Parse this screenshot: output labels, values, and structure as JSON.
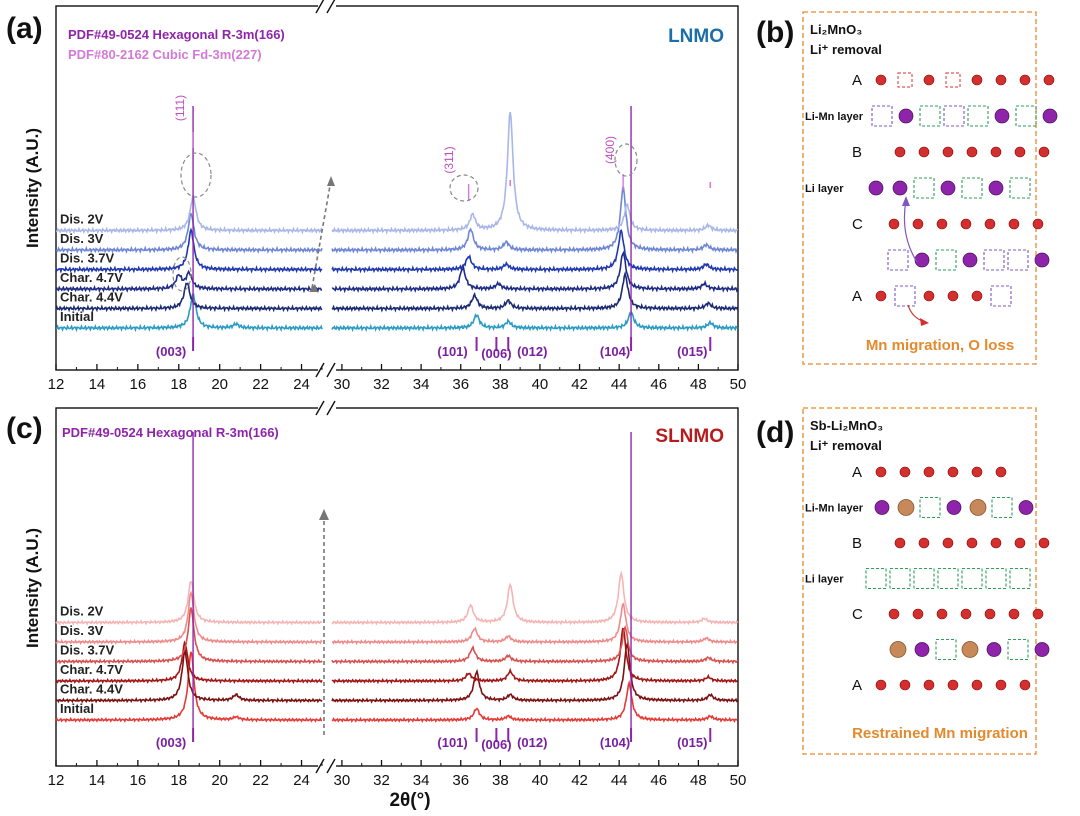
{
  "panel_labels": {
    "a": "(a)",
    "b": "(b)",
    "c": "(c)",
    "d": "(d)"
  },
  "chart_data": [
    {
      "type": "line",
      "panel": "(a)",
      "sample": "LNMO",
      "sample_color": "#1a6fa8",
      "xlabel": "2θ(°)",
      "ylabel": "Intensity (A.U.)",
      "x_ticks": [
        12,
        14,
        16,
        18,
        20,
        22,
        24,
        30,
        32,
        34,
        36,
        38,
        40,
        42,
        44,
        46,
        48,
        50
      ],
      "x_break": [
        25,
        29.5
      ],
      "xlim": [
        12,
        50
      ],
      "references": [
        {
          "label": "PDF#49-0524 Hexagonal R-3m(166)",
          "color": "#8e24aa"
        },
        {
          "label": "PDF#80-2162 Cubic Fd-3m(227)",
          "color": "#d37ad6"
        }
      ],
      "series": [
        {
          "name": "Initial",
          "color": "#2a9bc4",
          "peaks": [
            [
              18.7,
              1.3
            ],
            [
              20.8,
              0.15
            ],
            [
              36.8,
              0.5
            ],
            [
              38.4,
              0.25
            ],
            [
              44.6,
              0.6
            ],
            [
              48.6,
              0.2
            ]
          ]
        },
        {
          "name": "Char. 4.4V",
          "color": "#1c2a73",
          "peaks": [
            [
              18.4,
              1.0
            ],
            [
              36.7,
              0.5
            ],
            [
              38.4,
              0.3
            ],
            [
              44.3,
              1.3
            ],
            [
              48.5,
              0.2
            ]
          ]
        },
        {
          "name": "Char. 4.7V",
          "color": "#1e2c86",
          "peaks": [
            [
              18.0,
              0.5
            ],
            [
              18.5,
              0.6
            ],
            [
              36.1,
              0.8
            ],
            [
              37.9,
              0.2
            ],
            [
              44.2,
              1.4
            ],
            [
              48.3,
              0.2
            ]
          ]
        },
        {
          "name": "Dis. 3.7V",
          "color": "#2038b0",
          "peaks": [
            [
              18.6,
              1.5
            ],
            [
              36.4,
              0.5
            ],
            [
              38.3,
              0.2
            ],
            [
              44.1,
              1.5
            ],
            [
              48.4,
              0.2
            ]
          ]
        },
        {
          "name": "Dis. 3V",
          "color": "#6f86d6",
          "peaks": [
            [
              18.6,
              1.4
            ],
            [
              36.5,
              0.8
            ],
            [
              38.3,
              0.3
            ],
            [
              44.2,
              2.4
            ],
            [
              48.4,
              0.2
            ]
          ]
        },
        {
          "name": "Dis. 2V",
          "color": "#a9b7e8",
          "peaks": [
            [
              18.7,
              1.3
            ],
            [
              36.6,
              0.6
            ],
            [
              38.5,
              4.6
            ],
            [
              44.4,
              1.0
            ],
            [
              48.5,
              0.2
            ]
          ]
        }
      ],
      "hkl_hex": [
        {
          "label": "(003)",
          "x": 18.7
        },
        {
          "label": "(101)",
          "x": 36.8
        },
        {
          "label": "(006)",
          "x": 37.8
        },
        {
          "label": "(012)",
          "x": 38.4
        },
        {
          "label": "(104)",
          "x": 44.6
        },
        {
          "label": "(015)",
          "x": 48.6
        }
      ],
      "hkl_cubic": [
        {
          "label": "(111)",
          "x": 18.7
        },
        {
          "label": "(311)",
          "x": 36.4
        },
        {
          "label": "(400)",
          "x": 44.2
        }
      ]
    },
    {
      "type": "line",
      "panel": "(c)",
      "sample": "SLNMO",
      "sample_color": "#b71c1c",
      "xlabel": "2θ(°)",
      "ylabel": "Intensity (A.U.)",
      "x_ticks": [
        12,
        14,
        16,
        18,
        20,
        22,
        24,
        30,
        32,
        34,
        36,
        38,
        40,
        42,
        44,
        46,
        48,
        50
      ],
      "x_break": [
        25,
        29.5
      ],
      "xlim": [
        12,
        50
      ],
      "references": [
        {
          "label": "PDF#49-0524 Hexagonal R-3m(166)",
          "color": "#8e24aa"
        }
      ],
      "series": [
        {
          "name": "Initial",
          "color": "#e53935",
          "peaks": [
            [
              18.6,
              3.6
            ],
            [
              20.8,
              0.15
            ],
            [
              36.8,
              0.6
            ],
            [
              38.4,
              0.2
            ],
            [
              44.5,
              1.9
            ],
            [
              48.6,
              0.2
            ]
          ]
        },
        {
          "name": "Char. 4.4V",
          "color": "#7b1111",
          "peaks": [
            [
              18.3,
              2.6
            ],
            [
              20.8,
              0.3
            ],
            [
              36.8,
              1.5
            ],
            [
              38.5,
              0.3
            ],
            [
              44.4,
              3.0
            ],
            [
              48.6,
              0.3
            ]
          ]
        },
        {
          "name": "Char. 4.7V",
          "color": "#a31515",
          "peaks": [
            [
              18.3,
              2.0
            ],
            [
              36.4,
              0.4
            ],
            [
              38.5,
              0.5
            ],
            [
              44.2,
              2.8
            ],
            [
              48.5,
              0.2
            ]
          ]
        },
        {
          "name": "Dis. 3.7V",
          "color": "#d7514f",
          "peaks": [
            [
              18.6,
              2.8
            ],
            [
              36.6,
              0.7
            ],
            [
              38.4,
              0.3
            ],
            [
              44.3,
              1.8
            ],
            [
              48.5,
              0.2
            ]
          ]
        },
        {
          "name": "Dis. 3V",
          "color": "#ef8a8a",
          "peaks": [
            [
              18.6,
              2.6
            ],
            [
              36.7,
              0.7
            ],
            [
              38.4,
              0.3
            ],
            [
              44.2,
              2.0
            ],
            [
              48.4,
              0.2
            ]
          ]
        },
        {
          "name": "Dis. 2V",
          "color": "#f5b5b5",
          "peaks": [
            [
              18.6,
              2.2
            ],
            [
              36.5,
              0.9
            ],
            [
              38.5,
              2.0
            ],
            [
              44.1,
              2.6
            ],
            [
              48.3,
              0.2
            ]
          ]
        }
      ],
      "hkl_hex": [
        {
          "label": "(003)",
          "x": 18.7
        },
        {
          "label": "(101)",
          "x": 36.8
        },
        {
          "label": "(006)",
          "x": 37.8
        },
        {
          "label": "(012)",
          "x": 38.4
        },
        {
          "label": "(104)",
          "x": 44.6
        },
        {
          "label": "(015)",
          "x": 48.6
        }
      ]
    }
  ],
  "schematics": {
    "b": {
      "title": "Li₂MnO₃",
      "subtitle": "Li⁺ removal",
      "rows": [
        {
          "letter": "A",
          "kind": "O",
          "pattern": "O.O.OOOO"
        },
        {
          "label": "Li-Mn layer",
          "pattern": "vMgvgMgM"
        },
        {
          "letter": "B",
          "kind": "O",
          "pattern": "OOOOOOO"
        },
        {
          "label": "Li layer",
          "pattern": "MMgMgMg"
        },
        {
          "letter": "C",
          "kind": "O",
          "pattern": "OOOOOOO"
        },
        {
          "pattern": "vMgMvvM"
        },
        {
          "letter": "A",
          "kind": "O",
          "pattern": "OvOOOv"
        }
      ],
      "note": "Mn migration, O loss"
    },
    "d": {
      "title": "Sb-Li₂MnO₃",
      "subtitle": "Li⁺ removal",
      "rows": [
        {
          "letter": "A",
          "kind": "O",
          "pattern": "OOOOOO"
        },
        {
          "label": "Li-Mn layer",
          "pattern": "MSgMSgM"
        },
        {
          "letter": "B",
          "kind": "O",
          "pattern": "OOOOOOO"
        },
        {
          "label": "Li layer",
          "pattern": "ggggggg"
        },
        {
          "letter": "C",
          "kind": "O",
          "pattern": "OOOOOOO"
        },
        {
          "pattern": "SMgSMgM"
        },
        {
          "letter": "A",
          "kind": "O",
          "pattern": "OOOOOOO"
        }
      ],
      "note": "Restrained Mn migration"
    }
  }
}
